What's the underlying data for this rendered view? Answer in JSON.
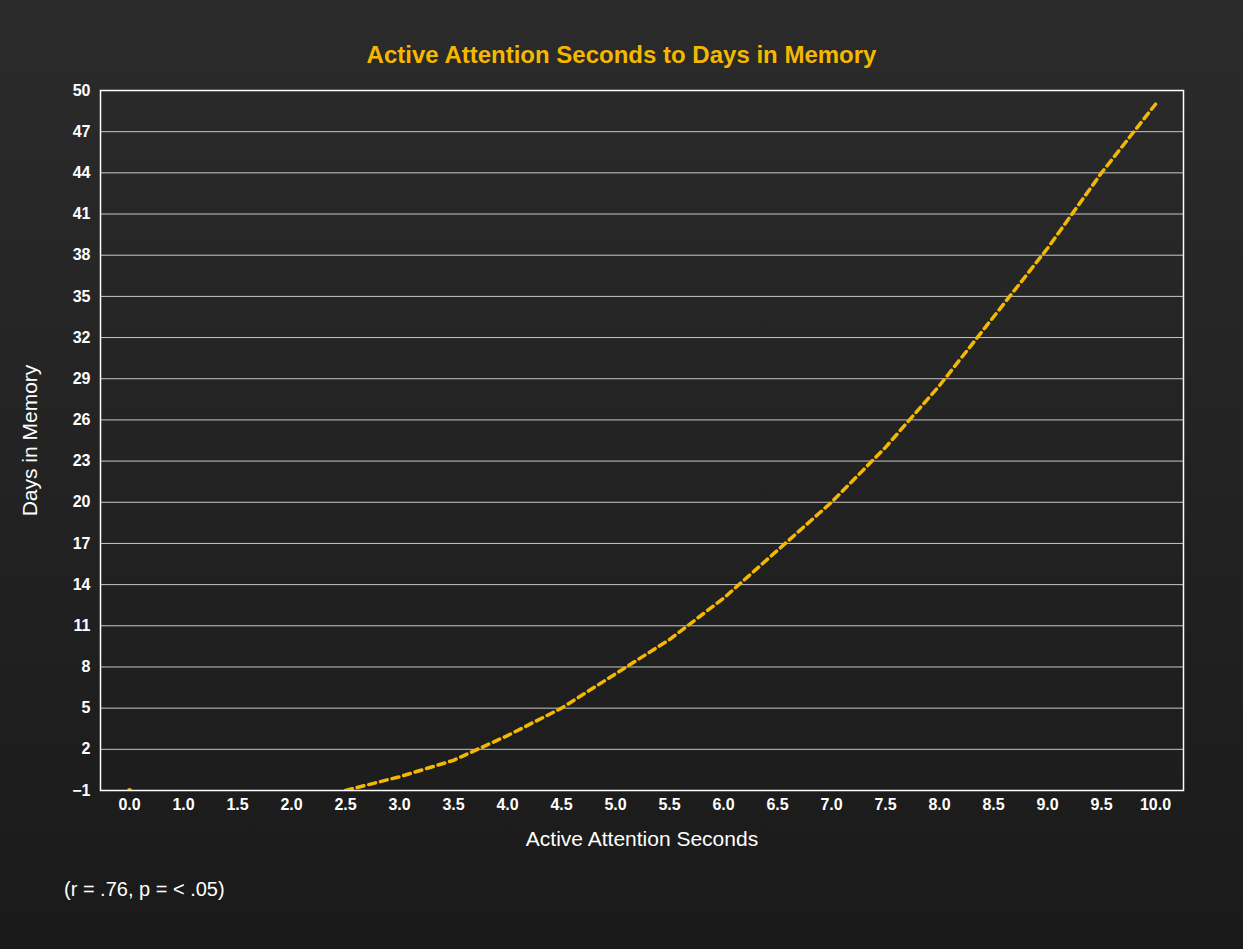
{
  "chart_data": {
    "type": "line",
    "title": "Active Attention Seconds to Days in Memory",
    "x_label": "Active Attention Seconds",
    "y_label": "Days in Memory",
    "annotations": [
      "(r = .76, p = < .05)"
    ],
    "categories": [
      "0.0",
      "1.0",
      "1.5",
      "2.0",
      "2.5",
      "3.0",
      "3.5",
      "4.0",
      "4.5",
      "5.0",
      "5.5",
      "6.0",
      "6.5",
      "7.0",
      "7.5",
      "8.0",
      "8.5",
      "9.0",
      "9.5",
      "10.0"
    ],
    "values": [
      -1,
      null,
      null,
      null,
      -1,
      0,
      1.2,
      3,
      5,
      7.5,
      10,
      13,
      16.5,
      20,
      24,
      28.5,
      33.5,
      38.5,
      44,
      49
    ],
    "color": "#f5b800",
    "line_style": "dashed",
    "ylim": [
      -1,
      50
    ],
    "yticks": [
      -1,
      2,
      5,
      8,
      11,
      14,
      17,
      20,
      23,
      26,
      29,
      32,
      35,
      38,
      41,
      44,
      47,
      50
    ],
    "grid": true
  }
}
